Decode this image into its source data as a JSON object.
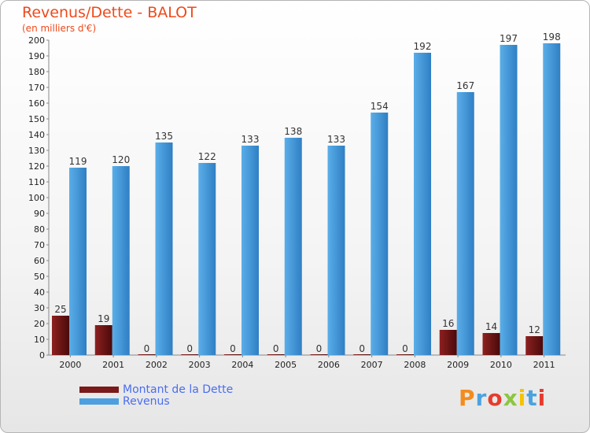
{
  "chart_data": {
    "type": "bar",
    "title": "Revenus/Dette - BALOT",
    "subtitle": "(en milliers d'€)",
    "categories": [
      "2000",
      "2001",
      "2002",
      "2003",
      "2004",
      "2005",
      "2006",
      "2007",
      "2008",
      "2009",
      "2010",
      "2011"
    ],
    "series": [
      {
        "name": "Montant de la Dette",
        "color": "#7a1a1a",
        "values": [
          25,
          19,
          0,
          0,
          0,
          0,
          0,
          0,
          0,
          16,
          14,
          12
        ]
      },
      {
        "name": "Revenus",
        "color": "#4d9fe0",
        "values": [
          119,
          120,
          135,
          122,
          133,
          138,
          133,
          154,
          192,
          167,
          197,
          198
        ]
      }
    ],
    "ylim": [
      0,
      200
    ],
    "ytick_step": 10,
    "grid": false,
    "legend": "bottom-left"
  },
  "logo": {
    "text": "Proxiti",
    "colors": [
      "#f28c1e",
      "#4aa3df",
      "#e63b2e",
      "#8cc63f",
      "#f5c400",
      "#4aa3df",
      "#e63b2e"
    ]
  }
}
